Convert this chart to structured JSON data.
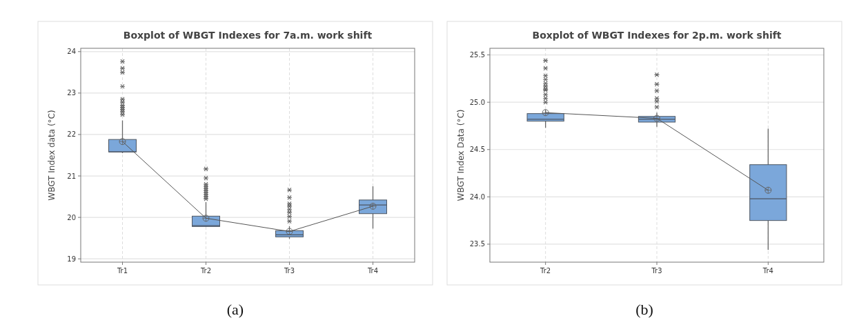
{
  "chart_data": [
    {
      "type": "box",
      "title": "Boxplot of WBGT Indexes for 7a.m. work shift",
      "ylabel": "WBGT Index data (°C)",
      "categories": [
        "Tr1",
        "Tr2",
        "Tr3",
        "Tr4"
      ],
      "ylim": [
        18.92,
        24.08
      ],
      "yticks": [
        19,
        20,
        21,
        22,
        23,
        24
      ],
      "grid": true,
      "annotations": [
        "(a)"
      ],
      "series": [
        {
          "color": "#7ba7da",
          "boxes": [
            {
              "low": 21.55,
              "q1": 21.58,
              "median": 21.58,
              "q3": 21.88,
              "high": 22.34,
              "mean": 21.83,
              "outliers": [
                23.76,
                23.6,
                23.5,
                23.16,
                22.85,
                22.78,
                22.7,
                22.65,
                22.6,
                22.55,
                22.48
              ]
            },
            {
              "low": 19.77,
              "q1": 19.78,
              "median": 19.8,
              "q3": 20.03,
              "high": 20.37,
              "mean": 19.98,
              "outliers": [
                21.17,
                20.95,
                20.8,
                20.75,
                20.7,
                20.65,
                20.6,
                20.55,
                20.5,
                20.45
              ]
            },
            {
              "low": 19.48,
              "q1": 19.53,
              "median": 19.58,
              "q3": 19.68,
              "high": 19.79,
              "mean": 19.66,
              "outliers": [
                20.66,
                20.48,
                20.33,
                20.27,
                20.19,
                20.12,
                20.02,
                19.91
              ]
            },
            {
              "low": 19.73,
              "q1": 20.09,
              "median": 20.3,
              "q3": 20.42,
              "high": 20.75,
              "mean": 20.27
            }
          ]
        },
        {
          "type": "line",
          "color": "#555555",
          "marker": "none",
          "x": [
            "Tr1",
            "Tr2",
            "Tr3",
            "Tr4"
          ],
          "values": [
            21.83,
            19.98,
            19.66,
            20.27
          ]
        }
      ]
    },
    {
      "type": "box",
      "title": "Boxplot of WBGT Indexes for 2p.m. work shift",
      "ylabel": "WBGT Index Data (°C)",
      "categories": [
        "Tr2",
        "Tr3",
        "Tr4"
      ],
      "ylim": [
        23.31,
        25.57
      ],
      "yticks": [
        {
          "value": 23.5,
          "label": "23.5"
        },
        {
          "value": 24,
          "label": "24.0"
        },
        {
          "value": 24.5,
          "label": "24.5"
        },
        {
          "value": 25,
          "label": "25.0"
        },
        {
          "value": 25.5,
          "label": "25.5"
        }
      ],
      "grid": true,
      "annotations": [
        "(b)"
      ],
      "series": [
        {
          "color": "#7ba7da",
          "boxes": [
            {
              "low": 24.73,
              "q1": 24.8,
              "median": 24.82,
              "q3": 24.88,
              "high": 24.92,
              "mean": 24.89,
              "outliers": [
                25.44,
                25.36,
                25.28,
                25.24,
                25.2,
                25.17,
                25.14,
                25.13,
                25.08,
                25.04,
                25.0
              ]
            },
            {
              "low": 24.74,
              "q1": 24.79,
              "median": 24.82,
              "q3": 24.85,
              "high": 24.89,
              "mean": 24.83,
              "outliers": [
                25.29,
                25.19,
                25.12,
                25.04,
                25.01,
                24.95
              ]
            },
            {
              "low": 23.44,
              "q1": 23.75,
              "median": 23.98,
              "q3": 24.34,
              "high": 24.72,
              "mean": 24.07
            }
          ]
        },
        {
          "type": "line",
          "color": "#555555",
          "marker": "none",
          "x": [
            "Tr2",
            "Tr3",
            "Tr4"
          ],
          "values": [
            24.89,
            24.83,
            24.07
          ]
        }
      ]
    }
  ]
}
